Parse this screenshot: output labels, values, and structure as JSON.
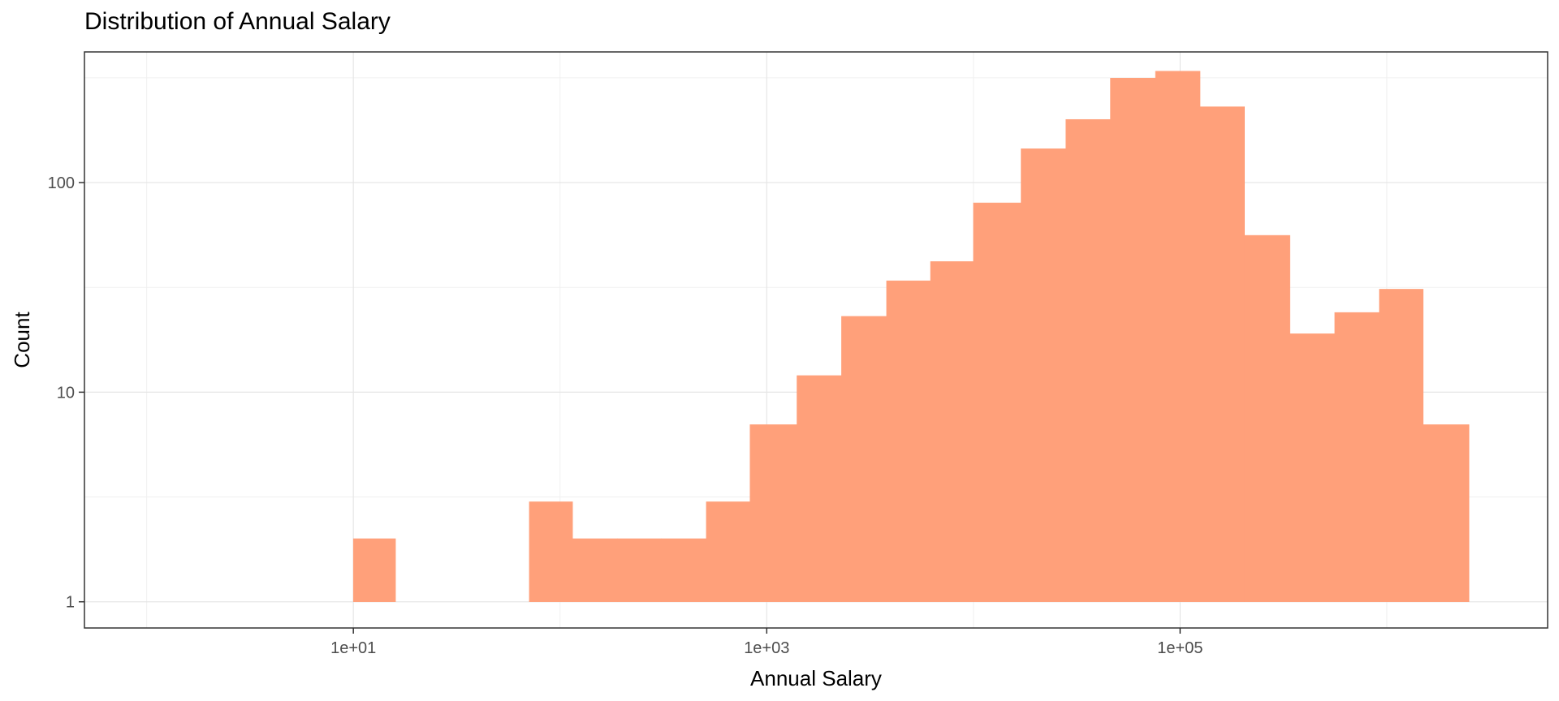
{
  "chart_data": {
    "type": "bar",
    "subtype": "histogram",
    "title": "Distribution of Annual Salary",
    "xlabel": "Annual Salary",
    "ylabel": "Count",
    "x_scale": "log10",
    "y_scale": "log10",
    "xlim": [
      0.5,
      6000000
    ],
    "ylim": [
      0.75,
      420
    ],
    "grid": true,
    "legend": "none",
    "bar_color": "#FFA07A",
    "x_ticks": [
      {
        "value": 10,
        "label": "1e+01"
      },
      {
        "value": 1000,
        "label": "1e+03"
      },
      {
        "value": 100000,
        "label": "1e+05"
      }
    ],
    "y_ticks": [
      {
        "value": 1,
        "label": "1"
      },
      {
        "value": 10,
        "label": "10"
      },
      {
        "value": 100,
        "label": "100"
      }
    ],
    "bins": [
      {
        "x0": 10,
        "x1": 16,
        "count": 2
      },
      {
        "x0": 16,
        "x1": 26,
        "count": 0
      },
      {
        "x0": 26,
        "x1": 42,
        "count": 0
      },
      {
        "x0": 42,
        "x1": 71,
        "count": 0
      },
      {
        "x0": 71,
        "x1": 115,
        "count": 3
      },
      {
        "x0": 115,
        "x1": 190,
        "count": 2
      },
      {
        "x0": 190,
        "x1": 310,
        "count": 2
      },
      {
        "x0": 310,
        "x1": 510,
        "count": 2
      },
      {
        "x0": 510,
        "x1": 830,
        "count": 3
      },
      {
        "x0": 830,
        "x1": 1400,
        "count": 7
      },
      {
        "x0": 1400,
        "x1": 2300,
        "count": 12
      },
      {
        "x0": 2300,
        "x1": 3800,
        "count": 23
      },
      {
        "x0": 3800,
        "x1": 6200,
        "count": 34
      },
      {
        "x0": 6200,
        "x1": 10000,
        "count": 42
      },
      {
        "x0": 10000,
        "x1": 17000,
        "count": 80
      },
      {
        "x0": 17000,
        "x1": 28000,
        "count": 145
      },
      {
        "x0": 28000,
        "x1": 46000,
        "count": 200
      },
      {
        "x0": 46000,
        "x1": 76000,
        "count": 315
      },
      {
        "x0": 76000,
        "x1": 125000,
        "count": 340
      },
      {
        "x0": 125000,
        "x1": 205000,
        "count": 230
      },
      {
        "x0": 205000,
        "x1": 340000,
        "count": 56
      },
      {
        "x0": 340000,
        "x1": 560000,
        "count": 19
      },
      {
        "x0": 560000,
        "x1": 920000,
        "count": 24
      },
      {
        "x0": 920000,
        "x1": 1500000,
        "count": 31
      },
      {
        "x0": 1500000,
        "x1": 2500000,
        "count": 7
      }
    ]
  }
}
